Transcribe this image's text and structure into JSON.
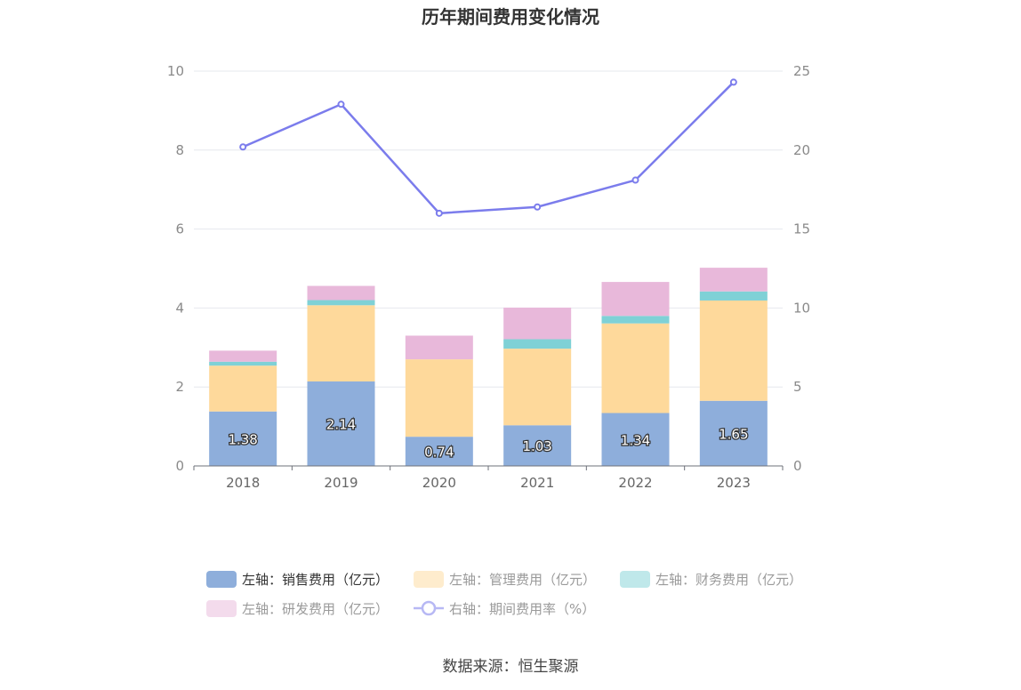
{
  "chart_data": {
    "type": "bar",
    "title": "历年期间费用变化情况",
    "categories": [
      "2018",
      "2019",
      "2020",
      "2021",
      "2022",
      "2023"
    ],
    "stacked": true,
    "y_left": {
      "min": 0,
      "max": 10,
      "ticks": [
        "0",
        "2",
        "4",
        "6",
        "8",
        "10"
      ]
    },
    "y_right": {
      "min": 0,
      "max": 25,
      "ticks": [
        "0",
        "5",
        "10",
        "15",
        "20",
        "25"
      ]
    },
    "grid": true,
    "legend_position": "bottom",
    "series": [
      {
        "name": "左轴：销售费用（亿元）",
        "axis": "left",
        "type": "bar",
        "color": "#8eaedb",
        "values": [
          1.38,
          2.14,
          0.74,
          1.03,
          1.34,
          1.65
        ],
        "labels": [
          "1.38",
          "2.14",
          "0.74",
          "1.03",
          "1.34",
          "1.65"
        ]
      },
      {
        "name": "左轴：管理费用（亿元）",
        "axis": "left",
        "type": "bar",
        "color": "#fed99b",
        "values": [
          1.16,
          1.93,
          1.96,
          1.94,
          2.27,
          2.54
        ]
      },
      {
        "name": "左轴：财务费用（亿元）",
        "axis": "left",
        "type": "bar",
        "color": "#7fd1d6",
        "values": [
          0.1,
          0.13,
          0.0,
          0.24,
          0.19,
          0.23
        ]
      },
      {
        "name": "左轴：研发费用（亿元）",
        "axis": "left",
        "type": "bar",
        "color": "#e8b8da",
        "values": [
          0.28,
          0.36,
          0.6,
          0.8,
          0.86,
          0.6
        ]
      },
      {
        "name": "右轴：期间费用率（%）",
        "axis": "right",
        "type": "line",
        "color": "#7b7cec",
        "values": [
          20.2,
          22.9,
          16.0,
          16.4,
          18.1,
          24.3
        ]
      }
    ]
  },
  "source": "数据来源：恒生聚源"
}
